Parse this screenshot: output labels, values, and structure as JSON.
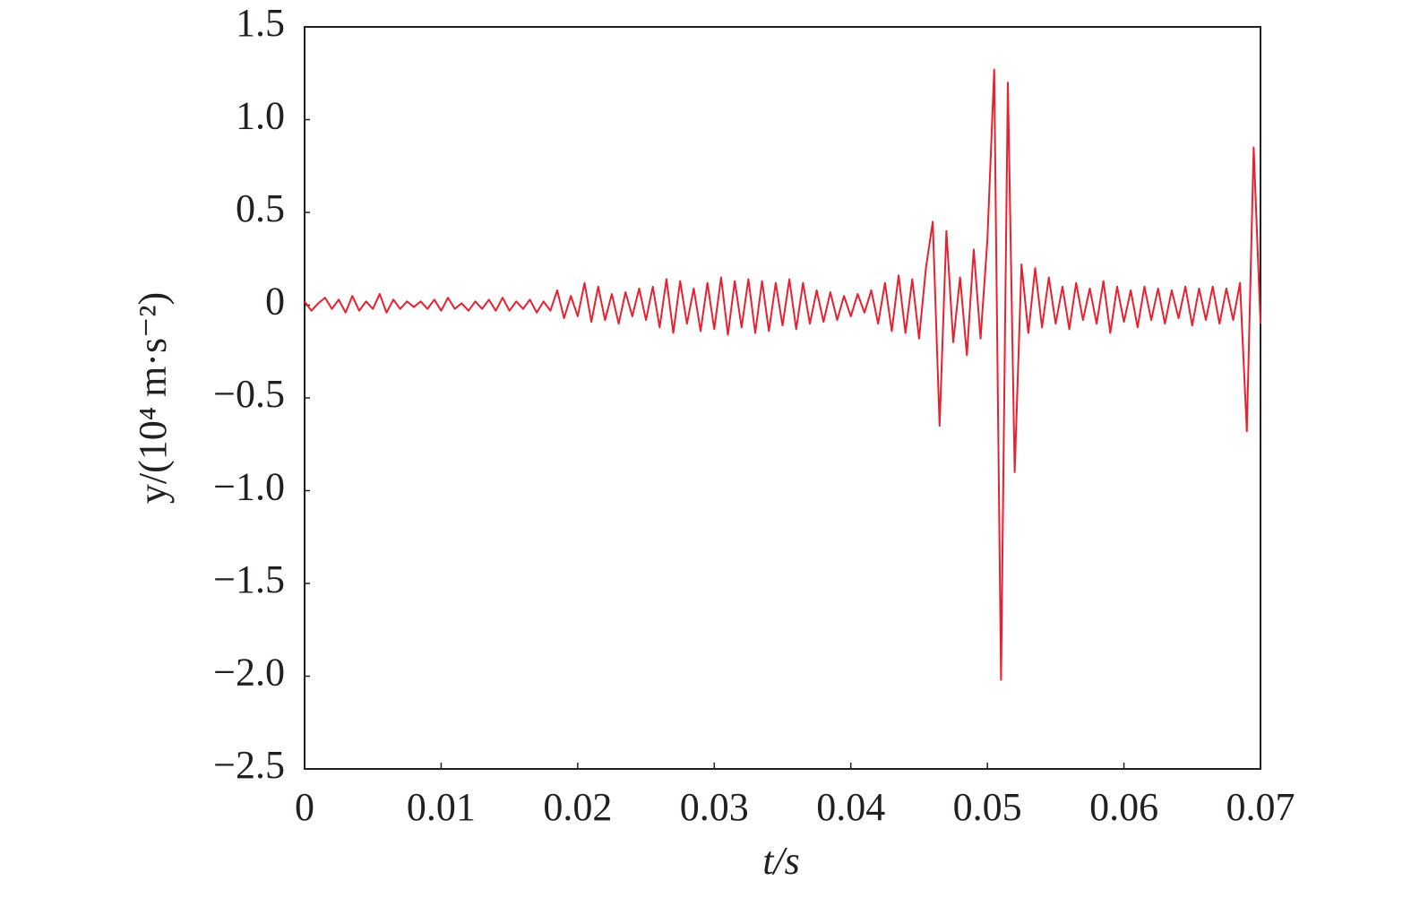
{
  "chart_data": {
    "type": "line",
    "x_label": "t/s",
    "y_label": "y/(10⁴ m·s⁻²)",
    "xlim": [
      0,
      0.07
    ],
    "ylim": [
      -2.5,
      1.5
    ],
    "xticks": [
      0,
      0.01,
      0.02,
      0.03,
      0.04,
      0.05,
      0.06,
      0.07
    ],
    "yticks": [
      1.5,
      {
        "value": 1,
        "label": "1.0"
      },
      0.5,
      0,
      {
        "value": -0.5,
        "label": "−0.5"
      },
      {
        "value": -1,
        "label": "−1.0"
      },
      {
        "value": -1.5,
        "label": "−1.5"
      },
      {
        "value": -2,
        "label": "−2.0"
      },
      {
        "value": -2.5,
        "label": "−2.5"
      }
    ],
    "x": [
      0,
      0.0005,
      0.001,
      0.0015,
      0.002,
      0.0025,
      0.003,
      0.0035,
      0.004,
      0.0045,
      0.005,
      0.0055,
      0.006,
      0.0065,
      0.007,
      0.0075,
      0.008,
      0.0085,
      0.009,
      0.0095,
      0.01,
      0.0105,
      0.011,
      0.0115,
      0.012,
      0.0125,
      0.013,
      0.0135,
      0.014,
      0.0145,
      0.015,
      0.0155,
      0.016,
      0.0165,
      0.017,
      0.0175,
      0.018,
      0.0185,
      0.019,
      0.0195,
      0.02,
      0.0205,
      0.021,
      0.0215,
      0.022,
      0.0225,
      0.023,
      0.0235,
      0.024,
      0.0245,
      0.025,
      0.0255,
      0.026,
      0.0265,
      0.027,
      0.0275,
      0.028,
      0.0285,
      0.029,
      0.0295,
      0.03,
      0.0305,
      0.031,
      0.0315,
      0.032,
      0.0325,
      0.033,
      0.0335,
      0.034,
      0.0345,
      0.035,
      0.0355,
      0.036,
      0.0365,
      0.037,
      0.0375,
      0.038,
      0.0385,
      0.039,
      0.0395,
      0.04,
      0.0405,
      0.041,
      0.0415,
      0.042,
      0.0425,
      0.043,
      0.0435,
      0.044,
      0.0445,
      0.045,
      0.0455,
      0.046,
      0.0465,
      0.047,
      0.0475,
      0.048,
      0.0485,
      0.049,
      0.0495,
      0.05,
      0.0505,
      0.051,
      0.0515,
      0.052,
      0.0525,
      0.053,
      0.0535,
      0.054,
      0.0545,
      0.055,
      0.0555,
      0.056,
      0.0565,
      0.057,
      0.0575,
      0.058,
      0.0585,
      0.059,
      0.0595,
      0.06,
      0.0605,
      0.061,
      0.0615,
      0.062,
      0.0625,
      0.063,
      0.0635,
      0.064,
      0.0645,
      0.065,
      0.0655,
      0.066,
      0.0665,
      0.067,
      0.0675,
      0.068,
      0.0685,
      0.069,
      0.0695,
      0.07
    ],
    "series": [
      {
        "color": "#e8202f",
        "values": [
          0.02,
          -0.03,
          0.01,
          0.04,
          -0.02,
          0.03,
          -0.04,
          0.05,
          -0.03,
          0.02,
          -0.02,
          0.06,
          -0.04,
          0.03,
          -0.02,
          0.02,
          -0.01,
          0.02,
          -0.02,
          0.03,
          -0.03,
          0.04,
          -0.02,
          0.01,
          -0.03,
          0.02,
          -0.02,
          0.03,
          -0.03,
          0.04,
          -0.03,
          0.02,
          -0.02,
          0.03,
          -0.04,
          0.02,
          -0.03,
          0.08,
          -0.07,
          0.05,
          -0.06,
          0.12,
          -0.09,
          0.1,
          -0.08,
          0.06,
          -0.1,
          0.07,
          -0.06,
          0.09,
          -0.08,
          0.1,
          -0.12,
          0.14,
          -0.15,
          0.13,
          -0.1,
          0.09,
          -0.14,
          0.12,
          -0.13,
          0.15,
          -0.16,
          0.13,
          -0.12,
          0.14,
          -0.15,
          0.13,
          -0.14,
          0.12,
          -0.11,
          0.14,
          -0.13,
          0.12,
          -0.1,
          0.08,
          -0.09,
          0.07,
          -0.08,
          0.05,
          -0.06,
          0.06,
          -0.04,
          0.08,
          -0.1,
          0.12,
          -0.14,
          0.16,
          -0.15,
          0.14,
          -0.18,
          0.2,
          0.45,
          -0.65,
          0.4,
          -0.2,
          0.15,
          -0.27,
          0.3,
          -0.18,
          0.35,
          1.27,
          -2.02,
          1.2,
          -0.9,
          0.22,
          -0.15,
          0.2,
          -0.12,
          0.15,
          -0.1,
          0.1,
          -0.13,
          0.12,
          -0.08,
          0.09,
          -0.1,
          0.13,
          -0.15,
          0.1,
          -0.09,
          0.08,
          -0.12,
          0.1,
          -0.08,
          0.09,
          -0.1,
          0.08,
          -0.07,
          0.1,
          -0.11,
          0.09,
          -0.08,
          0.1,
          -0.1,
          0.09,
          -0.08,
          0.12,
          -0.68,
          0.85,
          -0.1
        ]
      }
    ]
  }
}
